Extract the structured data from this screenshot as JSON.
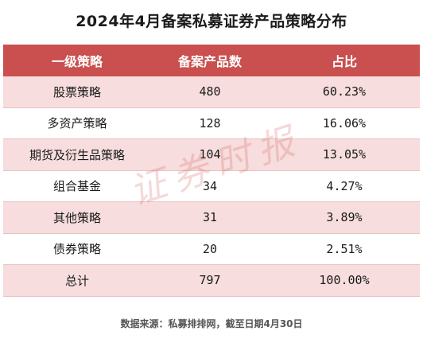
{
  "title": "2024年4月备案私募证券产品策略分布",
  "table": {
    "headers": [
      "一级策略",
      "备案产品数",
      "占比"
    ],
    "rows": [
      [
        "股票策略",
        "480",
        "60.23%"
      ],
      [
        "多资产策略",
        "128",
        "16.06%"
      ],
      [
        "期货及衍生品策略",
        "104",
        "13.05%"
      ],
      [
        "组合基金",
        "34",
        "4.27%"
      ],
      [
        "其他策略",
        "31",
        "3.89%"
      ],
      [
        "债券策略",
        "20",
        "2.51%"
      ],
      [
        "总计",
        "797",
        "100.00%"
      ]
    ]
  },
  "watermark": "证券时报",
  "source": "数据来源：私募排排网，截至日期4月30日",
  "colors": {
    "header_bg": "#c9504f",
    "shaded_row_bg": "#f7dddd",
    "row_border": "#e6c3c3"
  }
}
